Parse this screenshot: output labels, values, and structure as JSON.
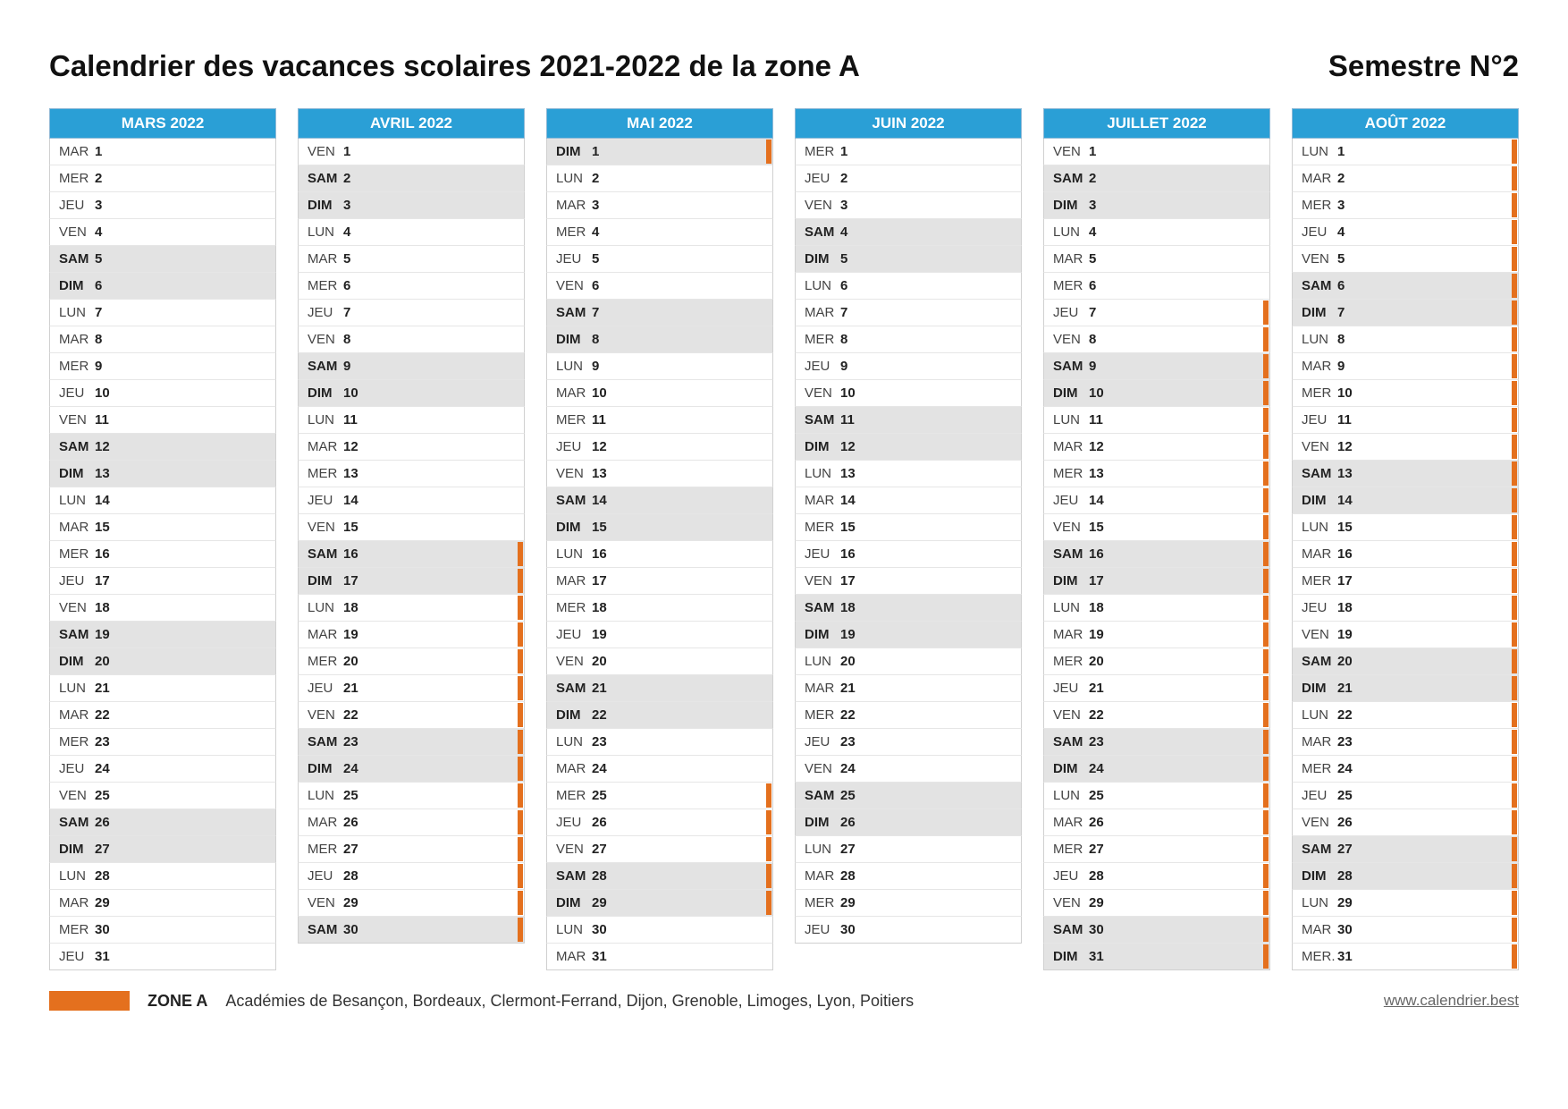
{
  "colors": {
    "header_bg": "#2a9fd6",
    "header_text": "#ffffff",
    "weekend_bg": "#e3e3e3",
    "weekday_bg": "#ffffff",
    "border": "#d0d0d0",
    "marker_zoneA": "#e4701e",
    "text": "#222222"
  },
  "title": "Calendrier des vacances scolaires 2021-2022 de la zone A",
  "semester": "Semestre N°2",
  "legend": {
    "zone_label": "ZONE A",
    "academies": "Académies de Besançon, Bordeaux, Clermont-Ferrand, Dijon, Grenoble, Limoges, Lyon, Poitiers",
    "site": "www.calendrier.best"
  },
  "weekdays": [
    "LUN",
    "MAR",
    "MER",
    "JEU",
    "VEN",
    "SAM",
    "DIM"
  ],
  "months": [
    {
      "name": "MARS 2022",
      "first_dow": 1,
      "num_days": 31,
      "holidays": []
    },
    {
      "name": "AVRIL 2022",
      "first_dow": 4,
      "num_days": 30,
      "holidays": [
        16,
        17,
        18,
        19,
        20,
        21,
        22,
        23,
        24,
        25,
        26,
        27,
        28,
        29,
        30
      ]
    },
    {
      "name": "MAI 2022",
      "first_dow": 6,
      "num_days": 31,
      "holidays": [
        1,
        25,
        26,
        27,
        28,
        29
      ]
    },
    {
      "name": "JUIN 2022",
      "first_dow": 2,
      "num_days": 30,
      "holidays": []
    },
    {
      "name": "JUILLET 2022",
      "first_dow": 4,
      "num_days": 31,
      "holidays": [
        7,
        8,
        9,
        10,
        11,
        12,
        13,
        14,
        15,
        16,
        17,
        18,
        19,
        20,
        21,
        22,
        23,
        24,
        25,
        26,
        27,
        28,
        29,
        30,
        31
      ]
    },
    {
      "name": "AOÛT 2022",
      "first_dow": 0,
      "num_days": 31,
      "holidays": [
        1,
        2,
        3,
        4,
        5,
        6,
        7,
        8,
        9,
        10,
        11,
        12,
        13,
        14,
        15,
        16,
        17,
        18,
        19,
        20,
        21,
        22,
        23,
        24,
        25,
        26,
        27,
        28,
        29,
        30,
        31
      ],
      "last_label_override": "MER."
    }
  ]
}
